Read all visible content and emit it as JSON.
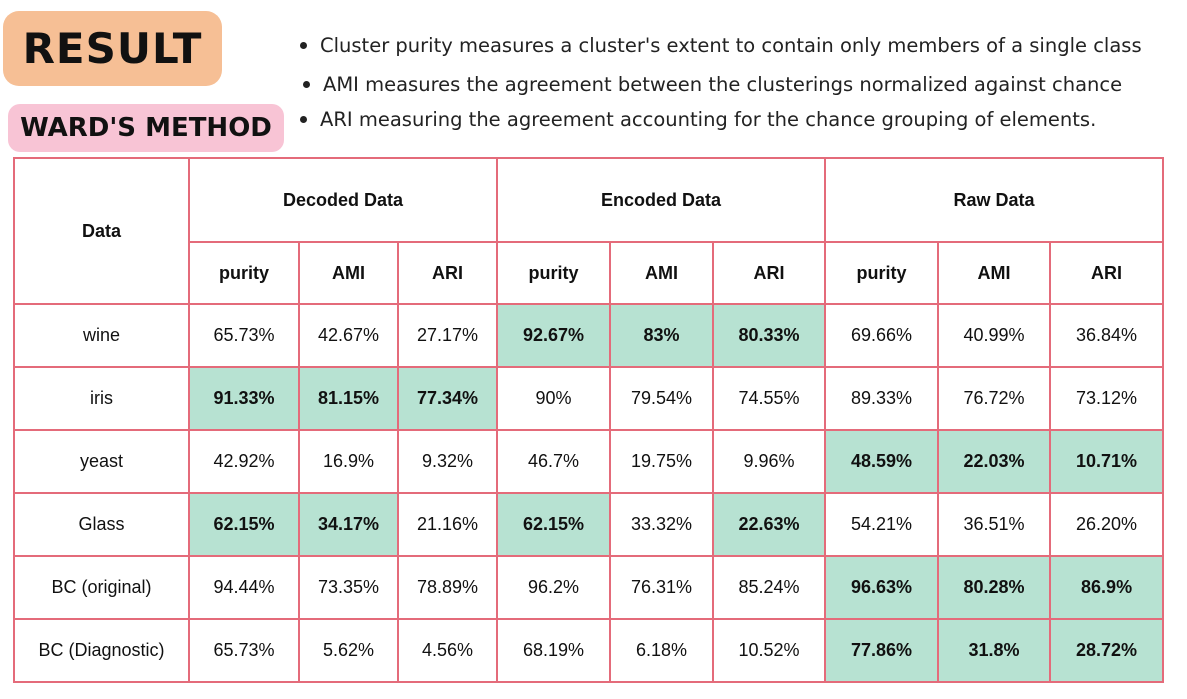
{
  "header": {
    "title": "RESULT",
    "subtitle": "WARD'S METHOD"
  },
  "bullets": [
    "Cluster purity measures a cluster's extent to contain only members of a single class",
    "AMI measures the agreement between the clusterings normalized against chance",
    "ARI measuring the agreement accounting for the chance grouping of elements."
  ],
  "colors": {
    "result_badge": "#f6bf95",
    "method_badge": "#f8c4d5",
    "table_border": "#e46b7a",
    "highlight": "#b7e2d2"
  },
  "table": {
    "data_header": "Data",
    "groups": [
      "Decoded Data",
      "Encoded Data",
      "Raw Data"
    ],
    "metrics": [
      "purity",
      "AMI",
      "ARI",
      "purity",
      "AMI",
      "ARI",
      "purity",
      "AMI",
      "ARI"
    ],
    "rows": [
      {
        "name": "wine",
        "values": [
          "65.73%",
          "42.67%",
          "27.17%",
          "92.67%",
          "83%",
          "80.33%",
          "69.66%",
          "40.99%",
          "36.84%"
        ],
        "highlight": [
          false,
          false,
          false,
          true,
          true,
          true,
          false,
          false,
          false
        ]
      },
      {
        "name": "iris",
        "values": [
          "91.33%",
          "81.15%",
          "77.34%",
          "90%",
          "79.54%",
          "74.55%",
          "89.33%",
          "76.72%",
          "73.12%"
        ],
        "highlight": [
          true,
          true,
          true,
          false,
          false,
          false,
          false,
          false,
          false
        ]
      },
      {
        "name": "yeast",
        "values": [
          "42.92%",
          "16.9%",
          "9.32%",
          "46.7%",
          "19.75%",
          "9.96%",
          "48.59%",
          "22.03%",
          "10.71%"
        ],
        "highlight": [
          false,
          false,
          false,
          false,
          false,
          false,
          true,
          true,
          true
        ]
      },
      {
        "name": "Glass",
        "values": [
          "62.15%",
          "34.17%",
          "21.16%",
          "62.15%",
          "33.32%",
          "22.63%",
          "54.21%",
          "36.51%",
          "26.20%"
        ],
        "highlight": [
          true,
          true,
          false,
          true,
          false,
          true,
          false,
          false,
          false
        ]
      },
      {
        "name": "BC (original)",
        "values": [
          "94.44%",
          "73.35%",
          "78.89%",
          "96.2%",
          "76.31%",
          "85.24%",
          "96.63%",
          "80.28%",
          "86.9%"
        ],
        "highlight": [
          false,
          false,
          false,
          false,
          false,
          false,
          true,
          true,
          true
        ]
      },
      {
        "name": "BC (Diagnostic)",
        "values": [
          "65.73%",
          "5.62%",
          "4.56%",
          "68.19%",
          "6.18%",
          "10.52%",
          "77.86%",
          "31.8%",
          "28.72%"
        ],
        "highlight": [
          false,
          false,
          false,
          false,
          false,
          false,
          true,
          true,
          true
        ]
      }
    ]
  }
}
